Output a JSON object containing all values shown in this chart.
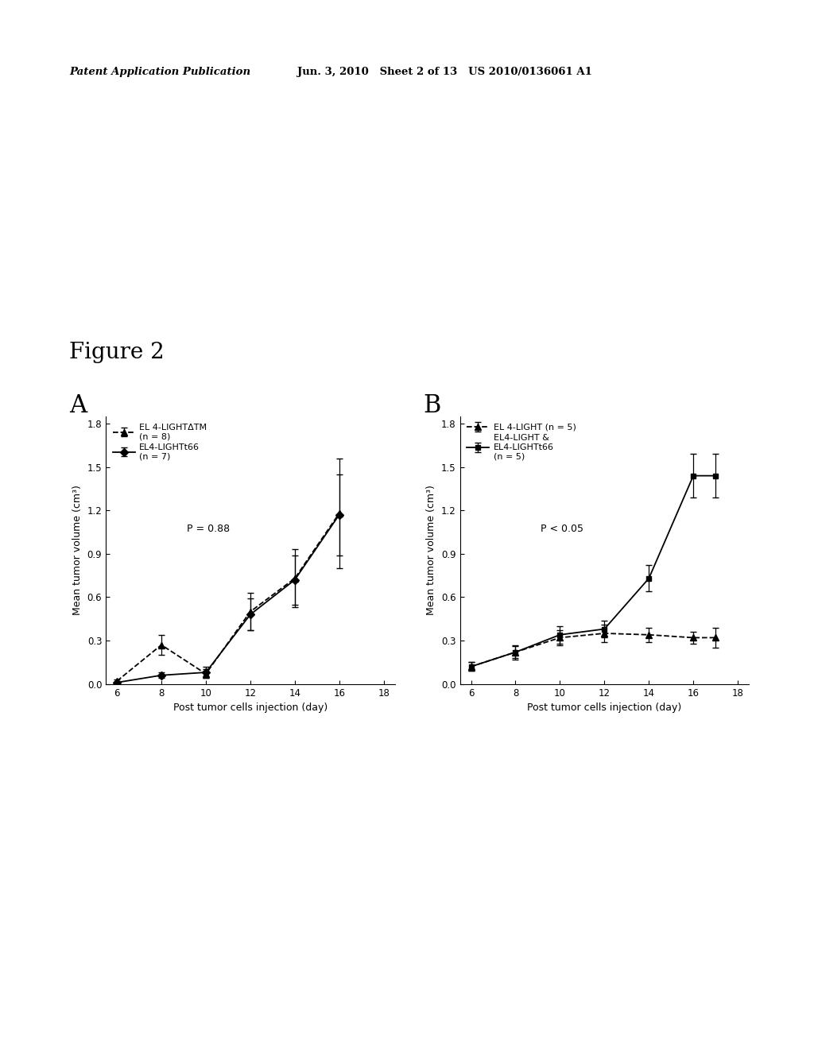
{
  "header_left": "Patent Application Publication",
  "header_right": "Jun. 3, 2010   Sheet 2 of 13   US 2010/0136061 A1",
  "figure_label": "Figure 2",
  "panel_A": {
    "label": "A",
    "series": [
      {
        "name": "EL 4-LIGHTΔTM\n(n = 8)",
        "x": [
          6,
          8,
          10,
          12,
          14,
          16
        ],
        "y": [
          0.02,
          0.27,
          0.07,
          0.5,
          0.73,
          1.18
        ],
        "yerr": [
          0.01,
          0.07,
          0.03,
          0.13,
          0.2,
          0.38
        ],
        "marker": "^",
        "linestyle": "--",
        "color": "#000000",
        "markersize": 6
      },
      {
        "name": "EL4-LIGHTt66\n(n = 7)",
        "x": [
          6,
          8,
          10,
          12,
          14,
          16
        ],
        "y": [
          0.01,
          0.06,
          0.08,
          0.48,
          0.72,
          1.17
        ],
        "yerr": [
          0.005,
          0.02,
          0.04,
          0.11,
          0.17,
          0.28
        ],
        "marker": "D",
        "linestyle": "-",
        "color": "#000000",
        "markersize": 5
      }
    ],
    "pvalue": "P = 0.88",
    "xlabel": "Post tumor cells injection (day)",
    "ylabel": "Mean tumor volume (cm³)",
    "xlim": [
      5.5,
      18.5
    ],
    "ylim": [
      0.0,
      1.85
    ],
    "yticks": [
      0.0,
      0.3,
      0.6,
      0.9,
      1.2,
      1.5,
      1.8
    ],
    "xticks": [
      6,
      8,
      10,
      12,
      14,
      16,
      18
    ]
  },
  "panel_B": {
    "label": "B",
    "series": [
      {
        "name": "EL 4-LIGHT (n = 5)",
        "x": [
          6,
          8,
          10,
          12,
          14,
          16,
          17
        ],
        "y": [
          0.12,
          0.22,
          0.32,
          0.35,
          0.34,
          0.32,
          0.32
        ],
        "yerr": [
          0.03,
          0.05,
          0.05,
          0.06,
          0.05,
          0.04,
          0.07
        ],
        "marker": "^",
        "linestyle": "--",
        "color": "#000000",
        "markersize": 6
      },
      {
        "name": "EL4-LIGHT &\nEL4-LIGHTt66\n(n = 5)",
        "x": [
          6,
          8,
          10,
          12,
          14,
          16,
          17
        ],
        "y": [
          0.12,
          0.22,
          0.34,
          0.38,
          0.73,
          1.44,
          1.44
        ],
        "yerr": [
          0.03,
          0.04,
          0.06,
          0.06,
          0.09,
          0.15,
          0.15
        ],
        "marker": "s",
        "linestyle": "-",
        "color": "#000000",
        "markersize": 5
      }
    ],
    "pvalue": "P < 0.05",
    "xlabel": "Post tumor cells injection (day)",
    "ylabel": "Mean tumor volume (cm³)",
    "xlim": [
      5.5,
      18.5
    ],
    "ylim": [
      0.0,
      1.85
    ],
    "yticks": [
      0.0,
      0.3,
      0.6,
      0.9,
      1.2,
      1.5,
      1.8
    ],
    "xticks": [
      6,
      8,
      10,
      12,
      14,
      16,
      18
    ]
  },
  "background_color": "#ffffff",
  "text_color": "#000000"
}
